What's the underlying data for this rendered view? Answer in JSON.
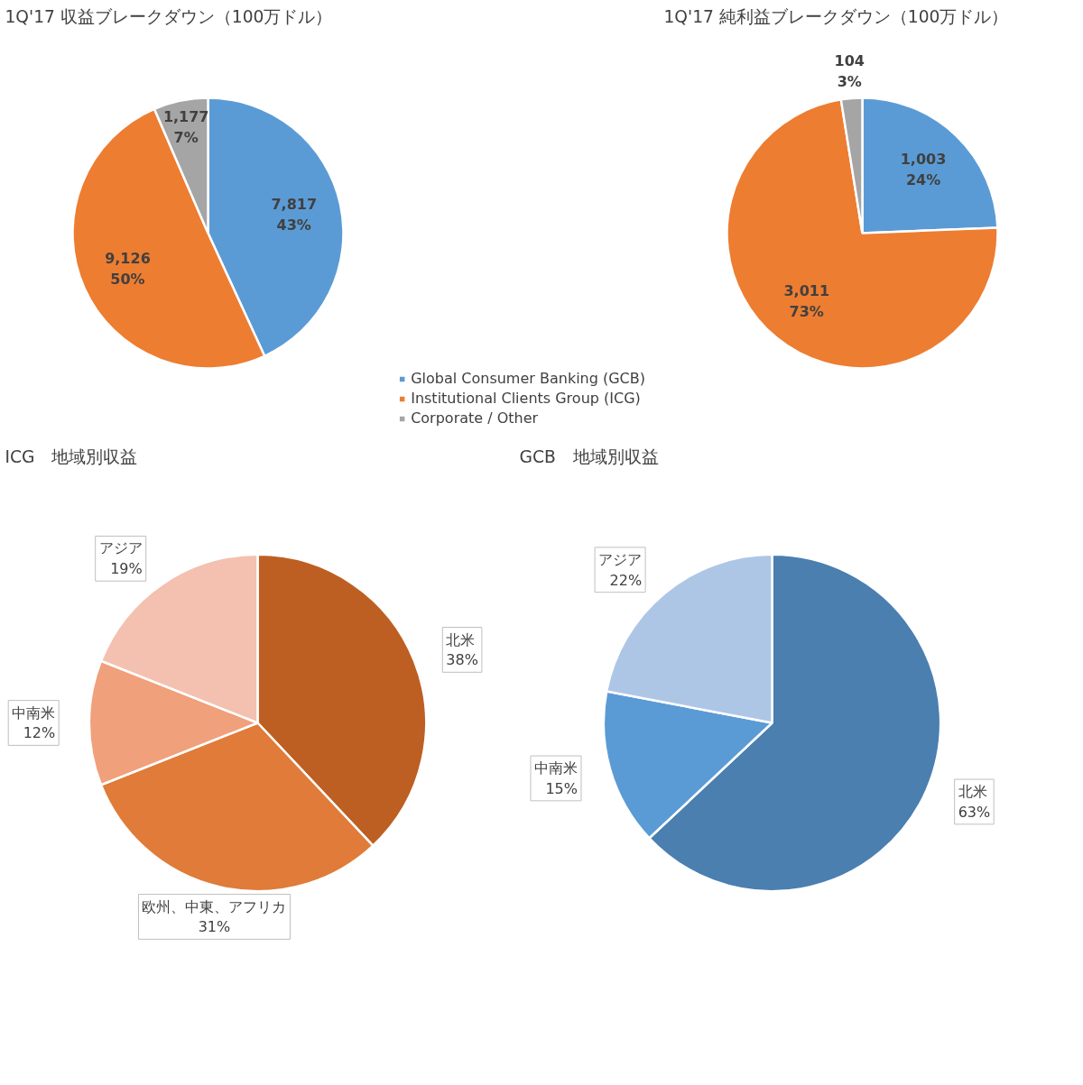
{
  "chart_data": [
    {
      "type": "pie",
      "title": "1Q'17 収益ブレークダウン（100万ドル）",
      "categories": [
        "Global Consumer Banking (GCB)",
        "Institutional Clients Group (ICG)",
        "Corporate / Other"
      ],
      "values": [
        7817,
        9126,
        1177
      ],
      "colors": [
        "#5b9bd5",
        "#ed7d31",
        "#a5a5a5"
      ],
      "value_labels": [
        "7,817\n43%",
        "9,126\n50%",
        "1,177\n7%"
      ],
      "legend": "bottom right"
    },
    {
      "type": "pie",
      "title": "1Q'17 純利益ブレークダウン（100万ドル）",
      "categories": [
        null,
        null,
        null
      ],
      "values": [
        1003,
        3011,
        104
      ],
      "colors": [
        "#5b9bd5",
        "#ed7d31",
        "#a5a5a5"
      ],
      "value_labels": [
        "1,003\n24%",
        "3,011\n73%",
        "104\n3%"
      ]
    },
    {
      "type": "pie",
      "title": "ICG　地域別収益",
      "categories": [
        "北米",
        "欧州、中東、アフリカ",
        "中南米",
        "アジア"
      ],
      "values": [
        38,
        31,
        12,
        19
      ],
      "colors": [
        "#bd5f22",
        "#e07b39",
        "#f0a07a",
        "#f4c0b0"
      ],
      "value_labels": [
        "38%",
        "31%",
        "12%",
        "19%"
      ]
    },
    {
      "type": "pie",
      "title": "GCB　地域別収益",
      "categories": [
        "北米",
        "中南米",
        "アジア"
      ],
      "values": [
        63,
        15,
        22
      ],
      "colors": [
        "#4a7fb0",
        "#5b9bd5",
        "#aec6e6"
      ],
      "value_labels": [
        "63%",
        "15%",
        "22%"
      ]
    }
  ]
}
